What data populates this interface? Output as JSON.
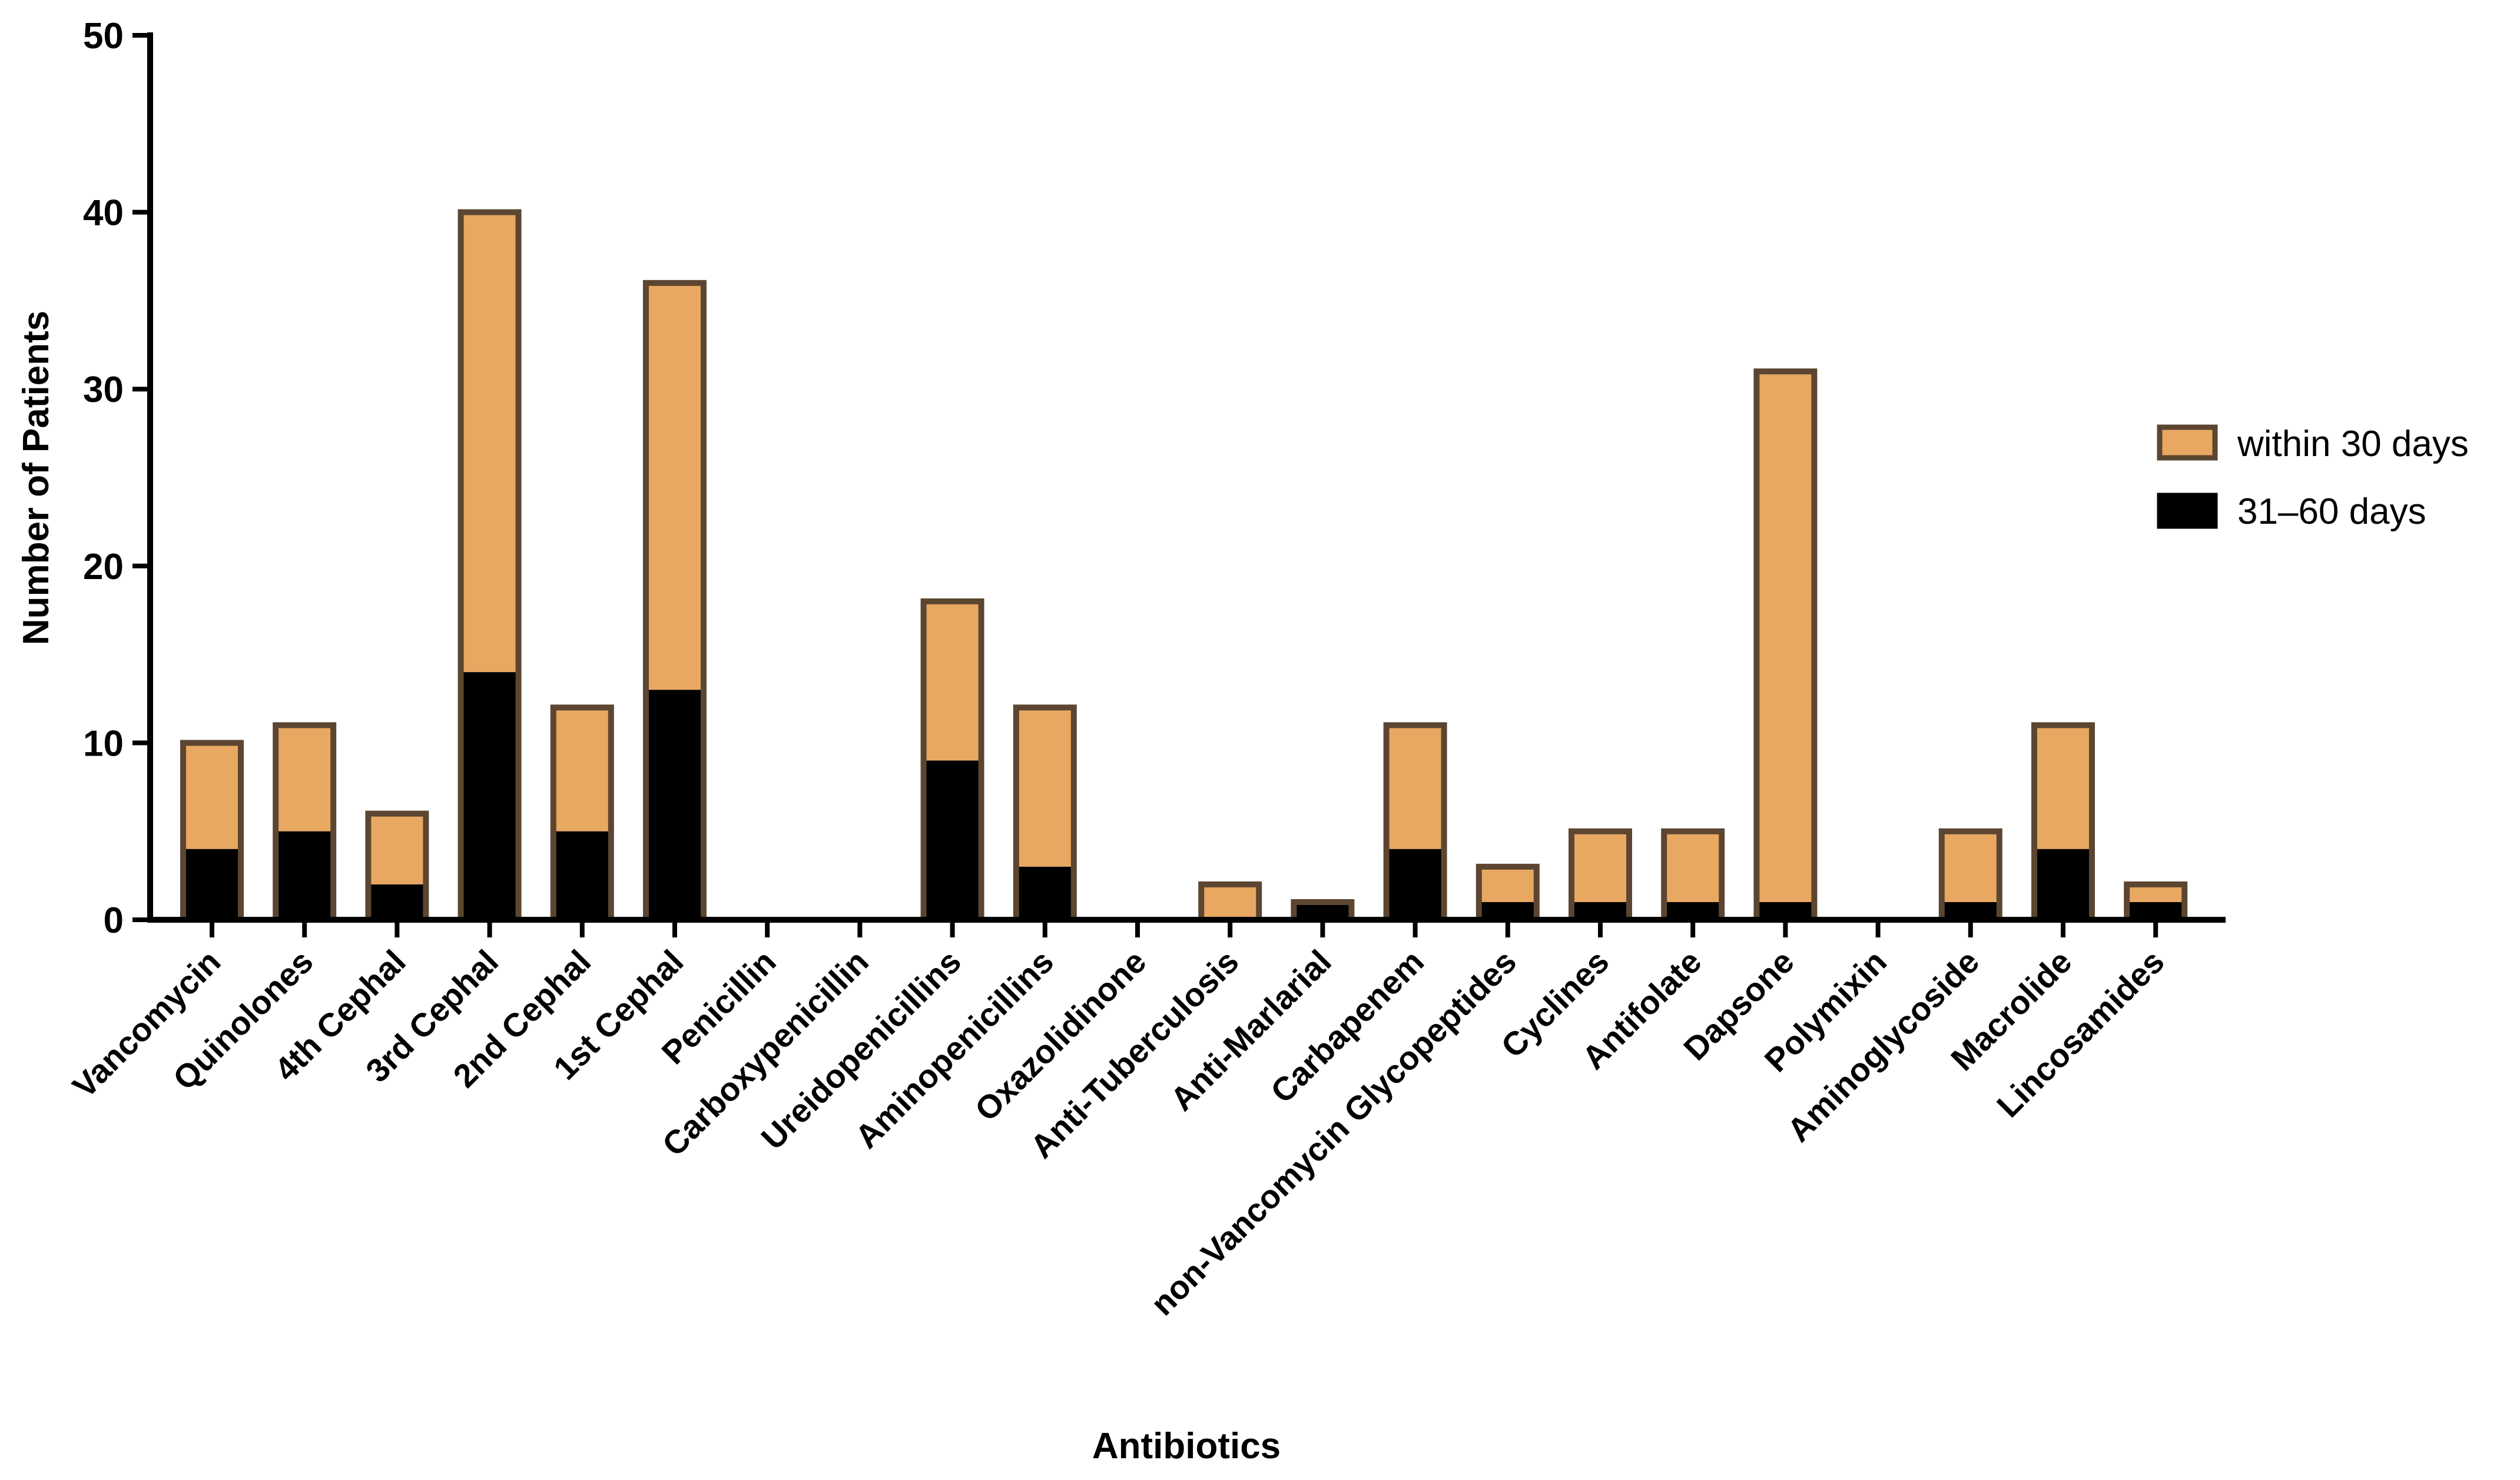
{
  "chart_data": {
    "type": "bar",
    "stacked": true,
    "title": "",
    "xlabel": "Antibiotics",
    "ylabel": "Number of Patients",
    "ylim": [
      0,
      50
    ],
    "yticks": [
      "0",
      "10",
      "20",
      "30",
      "40",
      "50"
    ],
    "grid": false,
    "legend_position": "right",
    "categories": [
      "Vancomycin",
      "Quinolones",
      "4th Cephal",
      "3rd Cephal",
      "2nd Cephal",
      "1st Cephal",
      "Penicillin",
      "Carboxypenicillin",
      "Ureidopenicillins",
      "Aminopenicillins",
      "Oxazolidinone",
      "Anti-Tuberculosis",
      "Anti-Marlarial",
      "Carbapenem",
      "non-Vancomycin Glycopeptides",
      "Cyclines",
      "Antifolate",
      "Dapsone",
      "Polymixin",
      "Aminoglycoside",
      "Macrolide",
      "Lincosamides"
    ],
    "series": [
      {
        "name": "31–60 days",
        "color": "#000000",
        "values": [
          4,
          5,
          2,
          14,
          5,
          13,
          0,
          0,
          9,
          3,
          0,
          0,
          1,
          4,
          1,
          1,
          1,
          1,
          0,
          1,
          4,
          1
        ]
      },
      {
        "name": "within 30 days",
        "color": "#E8A862",
        "border_color": "#5C4631",
        "values": [
          6,
          6,
          4,
          26,
          7,
          23,
          0,
          0,
          9,
          9,
          0,
          2,
          0,
          7,
          2,
          4,
          4,
          30,
          0,
          4,
          7,
          1
        ]
      }
    ],
    "legend": [
      "within 30 days",
      "31–60 days"
    ]
  }
}
